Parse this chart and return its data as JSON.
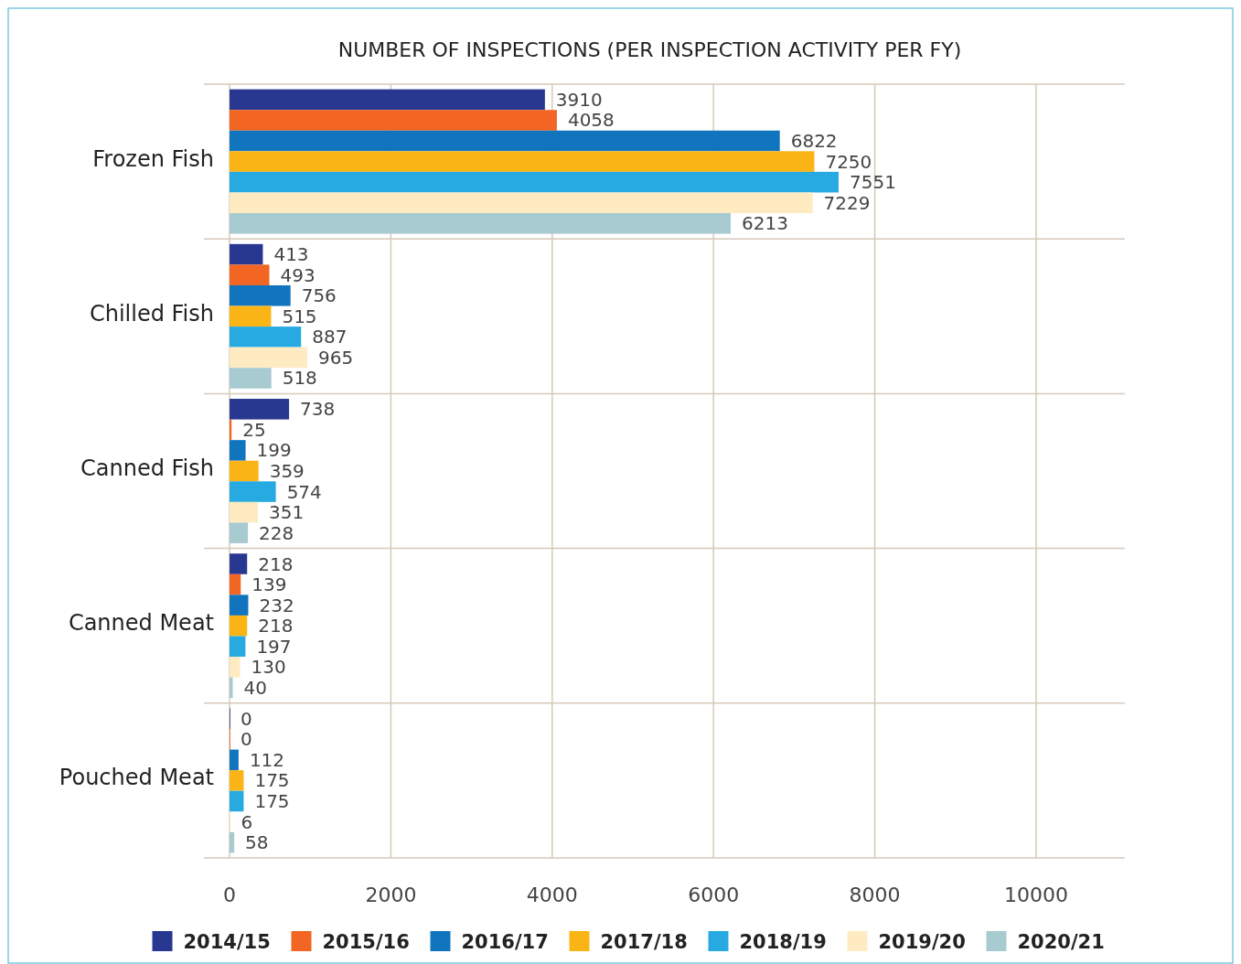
{
  "chart_data": {
    "type": "bar",
    "orientation": "horizontal",
    "title": "NUMBER OF INSPECTIONS (PER INSPECTION ACTIVITY PER FY)",
    "categories": [
      "Frozen Fish",
      "Chilled Fish",
      "Canned Fish",
      "Canned Meat",
      "Pouched Meat"
    ],
    "series": [
      {
        "name": "2014/15",
        "color": "#283891",
        "values": [
          3910,
          413,
          738,
          218,
          0
        ]
      },
      {
        "name": "2015/16",
        "color": "#f26522",
        "values": [
          4058,
          493,
          25,
          139,
          0
        ]
      },
      {
        "name": "2016/17",
        "color": "#1174be",
        "values": [
          6822,
          756,
          199,
          232,
          112
        ]
      },
      {
        "name": "2017/18",
        "color": "#fbb416",
        "values": [
          7250,
          515,
          359,
          218,
          175
        ]
      },
      {
        "name": "2018/19",
        "color": "#27aae1",
        "values": [
          7551,
          887,
          574,
          197,
          175
        ]
      },
      {
        "name": "2019/20",
        "color": "#feebc2",
        "values": [
          7229,
          965,
          351,
          130,
          6
        ]
      },
      {
        "name": "2020/21",
        "color": "#a8cad1",
        "values": [
          6213,
          518,
          228,
          40,
          58
        ]
      }
    ],
    "xlim": [
      0,
      11100
    ],
    "xticks": [
      0,
      2000,
      4000,
      6000,
      8000,
      10000
    ],
    "grid": true,
    "legend": "bottom",
    "data_labels": true
  }
}
